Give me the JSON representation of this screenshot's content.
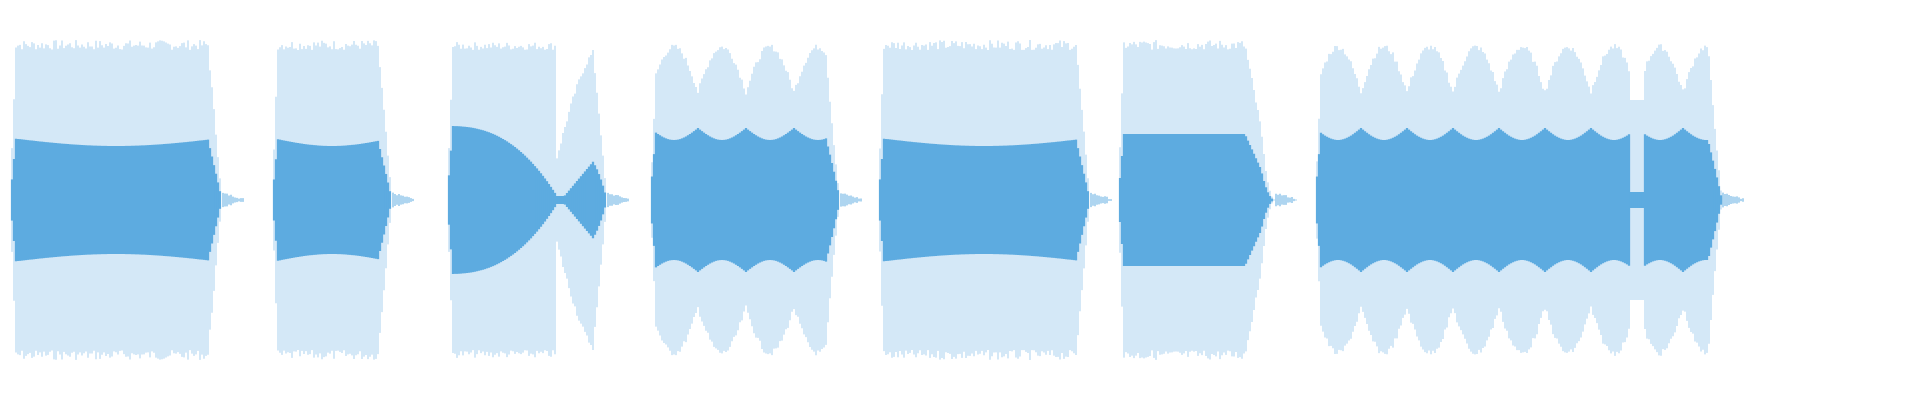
{
  "waveform": {
    "color_light": "#a9d0ef",
    "color_core": "#5dabe0",
    "background": "#ffffff",
    "segments": [
      {
        "shape": "flat"
      },
      {
        "shape": "flat"
      },
      {
        "shape": "split"
      },
      {
        "shape": "beating"
      },
      {
        "shape": "flat"
      },
      {
        "shape": "decay"
      },
      {
        "shape": "beating-long"
      }
    ]
  }
}
